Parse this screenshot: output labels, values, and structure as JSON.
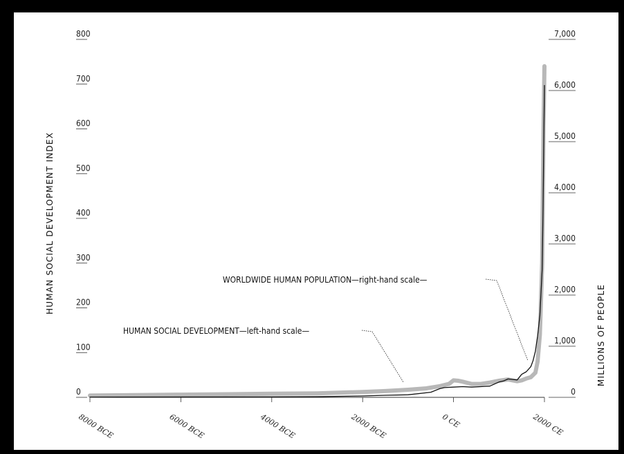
{
  "chart_data": {
    "type": "line",
    "title": "",
    "xlabel": "",
    "ylabel": "HUMAN SOCIAL DEVELOPMENT INDEX",
    "ylabel_right": "MILLIONS OF PEOPLE",
    "xlim": [
      -8000,
      2000
    ],
    "ylim": [
      0,
      800
    ],
    "ylim_right": [
      0,
      7000
    ],
    "x_ticks": [
      -8000,
      -6000,
      -4000,
      -2000,
      0,
      2000
    ],
    "x_tick_labels": [
      "8000 BCE",
      "6000 BCE",
      "4000 BCE",
      "2000 BCE",
      "0 CE",
      "2000 CE"
    ],
    "y_ticks_left": [
      0,
      100,
      200,
      300,
      400,
      500,
      600,
      700,
      800
    ],
    "y_ticks_left_labels": [
      "0",
      "100",
      "200",
      "300",
      "400",
      "500",
      "600",
      "700",
      "800"
    ],
    "y_ticks_right": [
      0,
      1000,
      2000,
      3000,
      4000,
      5000,
      6000,
      7000
    ],
    "y_ticks_right_labels": [
      "0",
      "1,000",
      "2,000",
      "3,000",
      "4,000",
      "5,000",
      "6,000",
      "7,000"
    ],
    "grid": false,
    "series": [
      {
        "name": "HUMAN SOCIAL DEVELOPMENT",
        "axis": "left",
        "color": "#b8b8b8",
        "x": [
          -8000,
          -7000,
          -6000,
          -5000,
          -4000,
          -3000,
          -2000,
          -1500,
          -1000,
          -600,
          -300,
          -100,
          0,
          100,
          200,
          400,
          600,
          800,
          1000,
          1200,
          1300,
          1400,
          1500,
          1600,
          1700,
          1800,
          1850,
          1900,
          1950,
          1980,
          2000
        ],
        "y": [
          4,
          5,
          6,
          7,
          8,
          9,
          12,
          14,
          17,
          20,
          25,
          30,
          38,
          37,
          35,
          30,
          30,
          33,
          37,
          40,
          38,
          36,
          38,
          42,
          45,
          55,
          80,
          140,
          300,
          600,
          740
        ]
      },
      {
        "name": "WORLDWIDE HUMAN POPULATION",
        "axis": "right",
        "color": "#111111",
        "x": [
          -8000,
          -6000,
          -4000,
          -3000,
          -2000,
          -1500,
          -1000,
          -500,
          -300,
          -200,
          0,
          200,
          400,
          600,
          800,
          1000,
          1100,
          1200,
          1300,
          1400,
          1500,
          1600,
          1700,
          1750,
          1800,
          1850,
          1900,
          1950,
          1970,
          1990,
          2000
        ],
        "y": [
          5,
          7,
          10,
          14,
          27,
          40,
          50,
          100,
          170,
          190,
          200,
          210,
          200,
          210,
          220,
          300,
          320,
          360,
          350,
          340,
          450,
          500,
          600,
          720,
          900,
          1200,
          1600,
          2500,
          3700,
          5300,
          6100
        ]
      }
    ],
    "annotations": [
      "WORLDWIDE HUMAN POPULATION—right-hand scale—",
      "HUMAN SOCIAL DEVELOPMENT—left-hand scale—"
    ]
  }
}
